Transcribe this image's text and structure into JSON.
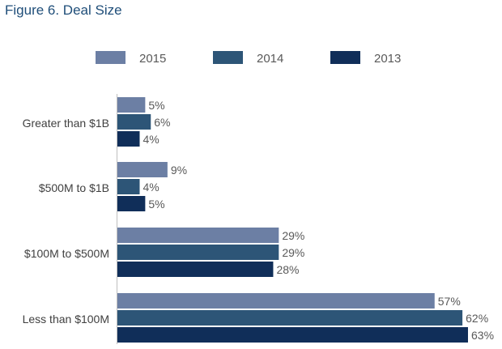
{
  "figure_title": "Figure 6.  Deal Size",
  "chart_data": {
    "type": "bar",
    "orientation": "horizontal",
    "title": "Figure 6.  Deal Size",
    "categories": [
      "Greater than $1B",
      "$500M to $1B",
      "$100M to $500M",
      "Less than $100M"
    ],
    "series": [
      {
        "name": "2015",
        "color": "#6c7fa4",
        "values": [
          5,
          9,
          29,
          57
        ],
        "labels": [
          "5%",
          "9%",
          "29%",
          "57%"
        ]
      },
      {
        "name": "2014",
        "color": "#2d5577",
        "values": [
          6,
          4,
          29,
          62
        ],
        "labels": [
          "6%",
          "4%",
          "29%",
          "62%"
        ]
      },
      {
        "name": "2013",
        "color": "#102e59",
        "values": [
          4,
          5,
          28,
          63
        ],
        "labels": [
          "4%",
          "5%",
          "28%",
          "63%"
        ]
      }
    ],
    "unit": "%",
    "xlim": [
      0,
      63
    ],
    "legend_position": "top",
    "grid": false
  }
}
